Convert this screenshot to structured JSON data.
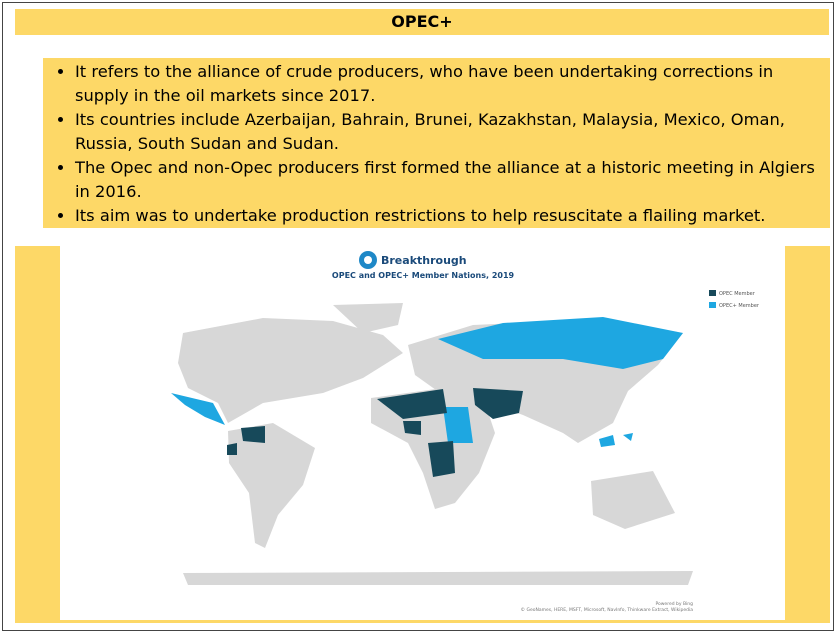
{
  "header": {
    "title": "OPEC+"
  },
  "bullets": [
    "It refers to the alliance of crude producers, who have been undertaking corrections in supply in the oil markets since 2017.",
    "Its countries include Azerbaijan, Bahrain, Brunei, Kazakhstan, Malaysia, Mexico, Oman, Russia, South Sudan and Sudan.",
    "The Opec and non-Opec producers first formed the alliance at a historic meeting in Algiers in 2016.",
    "Its aim was to undertake production restrictions to help resuscitate a flailing market."
  ],
  "map": {
    "brand": "Breakthrough",
    "title": "OPEC and OPEC+ Member Nations, 2019",
    "legend": [
      "OPEC Member",
      "OPEC+ Member"
    ],
    "credit": "Powered by Bing",
    "attribution": "© GeoNames, HERE, MSFT, Microsoft, NavInfo, Thinkware Extract, Wikipedia"
  }
}
